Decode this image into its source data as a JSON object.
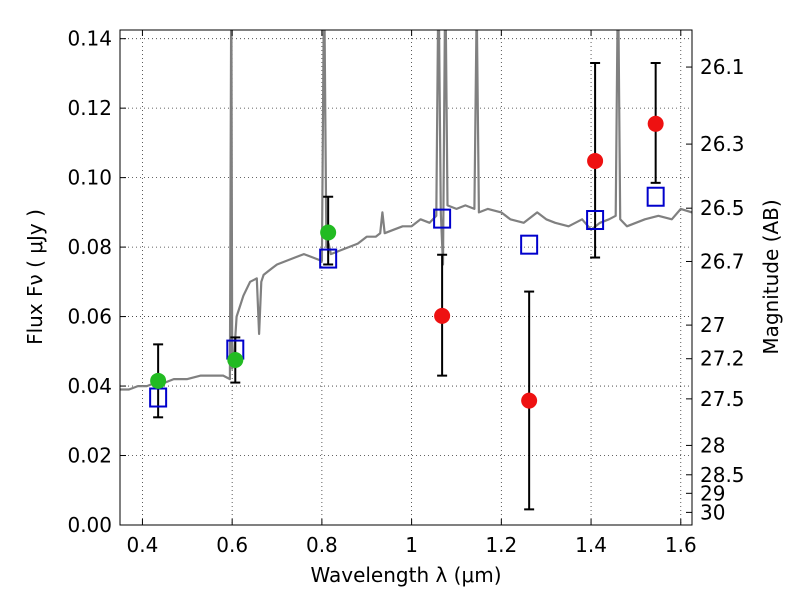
{
  "chart_data": {
    "type": "scatter",
    "title": "",
    "xlabel": "Wavelength  λ (μm)",
    "ylabel": "Flux  Fν  ( μJy )",
    "ylabel2": "Magnitude (AB)",
    "xlim": [
      0.35,
      1.625
    ],
    "ylim": [
      0.0,
      0.1425
    ],
    "grid": true,
    "x_ticks": [
      "0.4",
      "0.6",
      "0.8",
      "1",
      "1.2",
      "1.4",
      "1.6"
    ],
    "x_tick_values": [
      0.4,
      0.6,
      0.8,
      1.0,
      1.2,
      1.4,
      1.6
    ],
    "y_ticks": [
      "0.00",
      "0.02",
      "0.04",
      "0.06",
      "0.08",
      "0.10",
      "0.12",
      "0.14"
    ],
    "y_tick_values": [
      0.0,
      0.02,
      0.04,
      0.06,
      0.08,
      0.1,
      0.12,
      0.14
    ],
    "mag_ticks": [
      "26.1",
      "26.3",
      "26.5",
      "26.7",
      "27",
      "27.2",
      "27.5",
      "28",
      "28.5",
      "29",
      "30"
    ],
    "mag_tick_values": [
      26.1,
      26.3,
      26.5,
      26.7,
      27.0,
      27.2,
      27.5,
      28.0,
      28.5,
      29.0,
      30.0
    ],
    "colors": {
      "model_spectrum": "#808080",
      "model_photometry": "#0000cc",
      "optical_photometry": "#22bb22",
      "nir_photometry": "#ee1111",
      "errorbar": "#000000"
    },
    "series": [
      {
        "kind": "line",
        "color": "#808080",
        "x": [
          0.35,
          0.37,
          0.39,
          0.41,
          0.43,
          0.45,
          0.47,
          0.5,
          0.53,
          0.56,
          0.58,
          0.595,
          0.598,
          0.6,
          0.605,
          0.61,
          0.625,
          0.64,
          0.655,
          0.66,
          0.665,
          0.67,
          0.68,
          0.69,
          0.7,
          0.72,
          0.74,
          0.76,
          0.78,
          0.8,
          0.805,
          0.81,
          0.815,
          0.82,
          0.84,
          0.86,
          0.88,
          0.9,
          0.92,
          0.93,
          0.935,
          0.94,
          0.96,
          0.98,
          1.0,
          1.02,
          1.04,
          1.055,
          1.06,
          1.065,
          1.07,
          1.075,
          1.08,
          1.1,
          1.12,
          1.14,
          1.145,
          1.15,
          1.17,
          1.2,
          1.22,
          1.25,
          1.28,
          1.3,
          1.32,
          1.35,
          1.38,
          1.4,
          1.42,
          1.44,
          1.455,
          1.46,
          1.465,
          1.48,
          1.5,
          1.52,
          1.55,
          1.58,
          1.6,
          1.625
        ],
        "y": [
          0.039,
          0.039,
          0.04,
          0.04,
          0.041,
          0.041,
          0.042,
          0.042,
          0.043,
          0.043,
          0.043,
          0.042,
          0.16,
          0.045,
          0.05,
          0.06,
          0.066,
          0.07,
          0.071,
          0.055,
          0.07,
          0.072,
          0.073,
          0.074,
          0.075,
          0.076,
          0.077,
          0.078,
          0.077,
          0.076,
          0.16,
          0.08,
          0.081,
          0.078,
          0.079,
          0.08,
          0.081,
          0.083,
          0.083,
          0.084,
          0.09,
          0.084,
          0.085,
          0.086,
          0.086,
          0.088,
          0.087,
          0.089,
          0.16,
          0.09,
          0.075,
          0.16,
          0.092,
          0.091,
          0.092,
          0.091,
          0.15,
          0.09,
          0.091,
          0.09,
          0.088,
          0.087,
          0.09,
          0.088,
          0.087,
          0.086,
          0.088,
          0.085,
          0.087,
          0.088,
          0.089,
          0.16,
          0.088,
          0.086,
          0.087,
          0.088,
          0.089,
          0.088,
          0.091,
          0.09
        ]
      },
      {
        "kind": "errorbar",
        "color": "#22bb22",
        "x": [
          0.435,
          0.607,
          0.814
        ],
        "y": [
          0.0415,
          0.0475,
          0.0842
        ],
        "ylo": [
          0.031,
          0.041,
          0.075
        ],
        "yhi": [
          0.052,
          0.054,
          0.0945
        ]
      },
      {
        "kind": "errorbar",
        "color": "#ee1111",
        "x": [
          1.068,
          1.262,
          1.409,
          1.544
        ],
        "y": [
          0.0602,
          0.0358,
          0.1048,
          0.1155
        ],
        "ylo": [
          0.043,
          0.0045,
          0.077,
          0.0985
        ],
        "yhi": [
          0.0778,
          0.0672,
          0.133,
          0.133
        ]
      },
      {
        "kind": "square",
        "color": "#0000cc",
        "x": [
          0.435,
          0.607,
          0.814,
          1.068,
          1.262,
          1.409,
          1.544
        ],
        "y": [
          0.0367,
          0.0505,
          0.0767,
          0.0882,
          0.0807,
          0.0878,
          0.0945
        ]
      }
    ]
  }
}
